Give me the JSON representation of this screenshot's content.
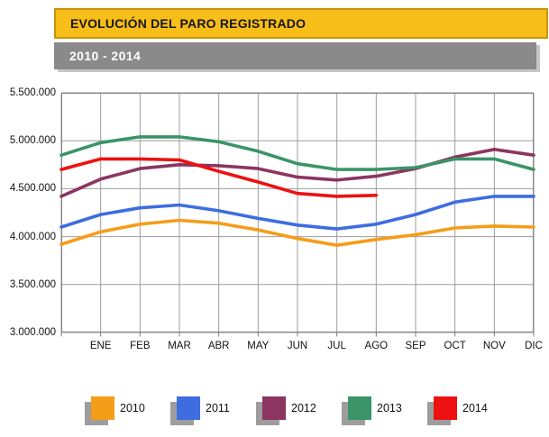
{
  "header": {
    "title": "EVOLUCIÓN DEL PARO REGISTRADO",
    "subtitle": "2010 - 2014"
  },
  "colors": {
    "title_bar_bg": "#F7BD18",
    "title_bar_border": "#C9940A",
    "subtitle_bar_bg": "#8A8A8A",
    "gridline": "#9E9E9E",
    "plot_border": "#7F7F7F",
    "tick": "#7F7F7F"
  },
  "chart_data": {
    "type": "line",
    "title": "EVOLUCIÓN DEL PARO REGISTRADO",
    "subtitle": "2010 - 2014",
    "categories": [
      "ENE",
      "FEB",
      "MAR",
      "ABR",
      "MAY",
      "JUN",
      "JUL",
      "AGO",
      "SEP",
      "OCT",
      "NOV",
      "DIC"
    ],
    "y_tick_labels": [
      "5.500.000",
      "5.000.000",
      "4.500.000",
      "4.000.000",
      "3.500.000",
      "3.000.000"
    ],
    "ylim": [
      3000000,
      5500000
    ],
    "y_grid_step": 500000,
    "grid": "both",
    "legend_position": "bottom",
    "note": "Each line starts at the left axis edge (previous December level); the 2014 series ends at AGO.",
    "series": [
      {
        "name": "2010",
        "color": "#F49D19",
        "edge_start_value": 3920000,
        "values": [
          4050000,
          4130000,
          4170000,
          4140000,
          4070000,
          3980000,
          3910000,
          3970000,
          4020000,
          4090000,
          4110000,
          4100000
        ]
      },
      {
        "name": "2011",
        "color": "#3D6DDE",
        "edge_start_value": 4100000,
        "values": [
          4230000,
          4300000,
          4330000,
          4270000,
          4190000,
          4120000,
          4080000,
          4130000,
          4230000,
          4360000,
          4420000,
          4420000
        ]
      },
      {
        "name": "2012",
        "color": "#8C3560",
        "edge_start_value": 4420000,
        "values": [
          4600000,
          4710000,
          4750000,
          4740000,
          4710000,
          4620000,
          4590000,
          4630000,
          4710000,
          4830000,
          4910000,
          4850000
        ]
      },
      {
        "name": "2013",
        "color": "#3A9468",
        "edge_start_value": 4850000,
        "values": [
          4980000,
          5040000,
          5040000,
          4990000,
          4890000,
          4760000,
          4700000,
          4700000,
          4720000,
          4810000,
          4810000,
          4700000
        ]
      },
      {
        "name": "2014",
        "color": "#ED1111",
        "edge_start_value": 4700000,
        "values": [
          4810000,
          4810000,
          4800000,
          4680000,
          4570000,
          4450000,
          4420000,
          4430000
        ]
      }
    ]
  }
}
